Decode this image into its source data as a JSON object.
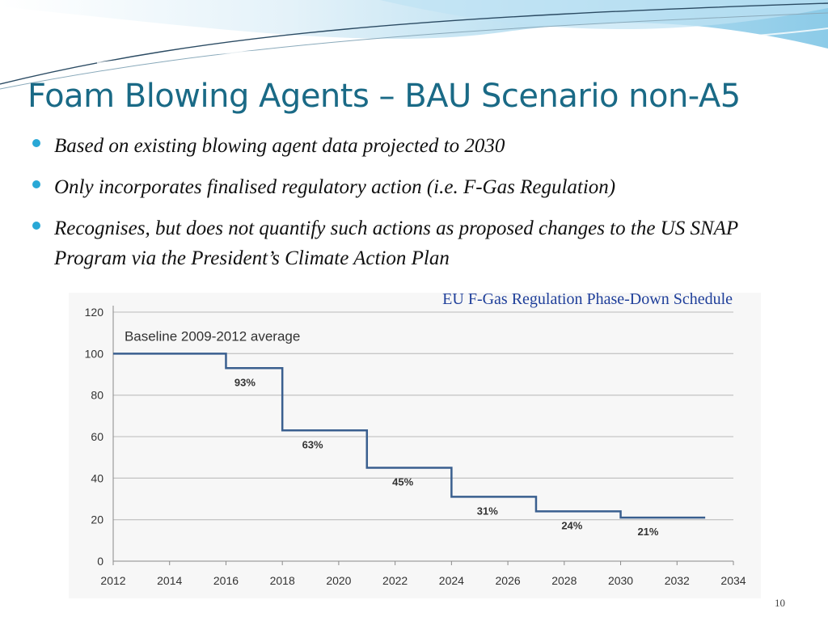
{
  "slide": {
    "title": "Foam Blowing Agents – BAU Scenario non-A5",
    "bullets": [
      "Based on existing blowing agent data projected to 2030",
      "Only incorporates finalised regulatory action (i.e. F-Gas Regulation)",
      "Recognises, but does not quantify such actions as proposed changes to the US SNAP Program via the President’s Climate Action Plan"
    ],
    "page_number": "10"
  },
  "colors": {
    "title": "#1a6a86",
    "bullet": "#29a8d6",
    "chart_title": "#1f3f9a",
    "line": "#3a5f8f",
    "grid": "#c7c7c7"
  },
  "chart_data": {
    "type": "line",
    "step": true,
    "title": "EU F-Gas Regulation Phase-Down Schedule",
    "annotation": "Baseline 2009-2012 average",
    "xlim": [
      2012,
      2034
    ],
    "ylim": [
      0,
      120
    ],
    "x_ticks": [
      2012,
      2014,
      2016,
      2018,
      2020,
      2022,
      2024,
      2026,
      2028,
      2030,
      2032,
      2034
    ],
    "y_ticks": [
      0,
      20,
      40,
      60,
      80,
      100,
      120
    ],
    "grid": "horizontal",
    "series": [
      {
        "x": [
          2012,
          2016,
          2016,
          2018,
          2018,
          2021,
          2021,
          2024,
          2024,
          2027,
          2027,
          2030,
          2030,
          2033
        ],
        "y": [
          100,
          100,
          93,
          93,
          63,
          63,
          45,
          45,
          31,
          31,
          24,
          24,
          21,
          21
        ]
      }
    ],
    "step_labels": [
      {
        "x": 2016.3,
        "y": 93,
        "text": "93%"
      },
      {
        "x": 2018.7,
        "y": 63,
        "text": "63%"
      },
      {
        "x": 2021.9,
        "y": 45,
        "text": "45%"
      },
      {
        "x": 2024.9,
        "y": 31,
        "text": "31%"
      },
      {
        "x": 2027.9,
        "y": 24,
        "text": "24%"
      },
      {
        "x": 2030.6,
        "y": 21,
        "text": "21%"
      }
    ]
  }
}
